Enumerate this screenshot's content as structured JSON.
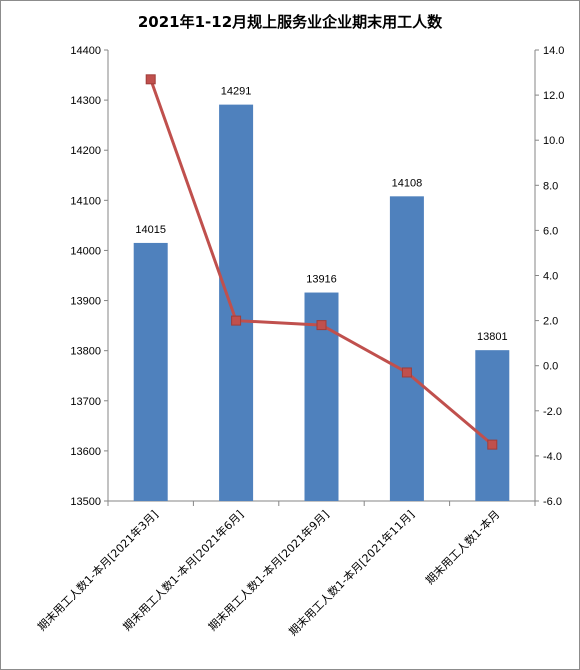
{
  "chart_data": {
    "type": "bar",
    "title": "2021年1-12月规上服务业企业期末用工人数",
    "categories": [
      "期末用工人数1-本月[2021年3月]",
      "期末用工人数1-本月[2021年6月]",
      "期末用工人数1-本月[2021年9月]",
      "期末用工人数1-本月[2021年11月]",
      "期末用工人数1-本月"
    ],
    "series": [
      {
        "type": "bar",
        "axis": "left",
        "color": "#4f81bd",
        "values": [
          14015,
          14291,
          13916,
          14108,
          13801
        ]
      },
      {
        "type": "line",
        "axis": "right",
        "color": "#c0504d",
        "values": [
          12.7,
          2.0,
          1.8,
          -0.3,
          -3.5
        ]
      }
    ],
    "y_left": {
      "min": 13500,
      "max": 14400,
      "step": 100,
      "ticks": [
        "13500",
        "13600",
        "13700",
        "13800",
        "13900",
        "14000",
        "14100",
        "14200",
        "14300",
        "14400"
      ]
    },
    "y_right": {
      "min": -6.0,
      "max": 14.0,
      "step": 2,
      "ticks": [
        "-6.0",
        "-4.0",
        "-2.0",
        "0.0",
        "2.0",
        "4.0",
        "6.0",
        "8.0",
        "10.0",
        "12.0",
        "14.0"
      ]
    },
    "data_labels": [
      "14015",
      "14291",
      "13916",
      "14108",
      "13801"
    ],
    "grid": false,
    "legend": "none"
  }
}
